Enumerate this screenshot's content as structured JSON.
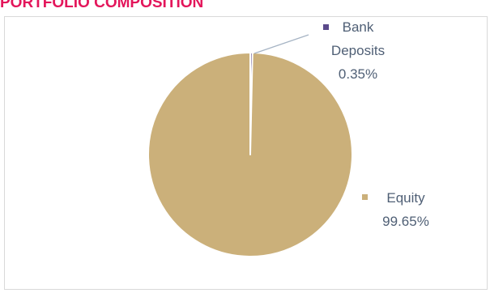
{
  "chart_data": {
    "type": "pie",
    "title": "PORTFOLIO COMPOSITION",
    "slices": [
      {
        "name": "Bank Deposits",
        "label_lines": [
          "Bank",
          "Deposits"
        ],
        "value": 0.35,
        "value_label": "0.35%",
        "color": "#5b4a8b"
      },
      {
        "name": "Equity",
        "label_lines": [
          "Equity"
        ],
        "value": 99.65,
        "value_label": "99.65%",
        "color": "#cbb07a"
      }
    ]
  },
  "colors": {
    "title": "#e3165b",
    "label_text": "#4f5f75",
    "leader_line": "#a6b4c4",
    "slice_border": "#ffffff"
  }
}
